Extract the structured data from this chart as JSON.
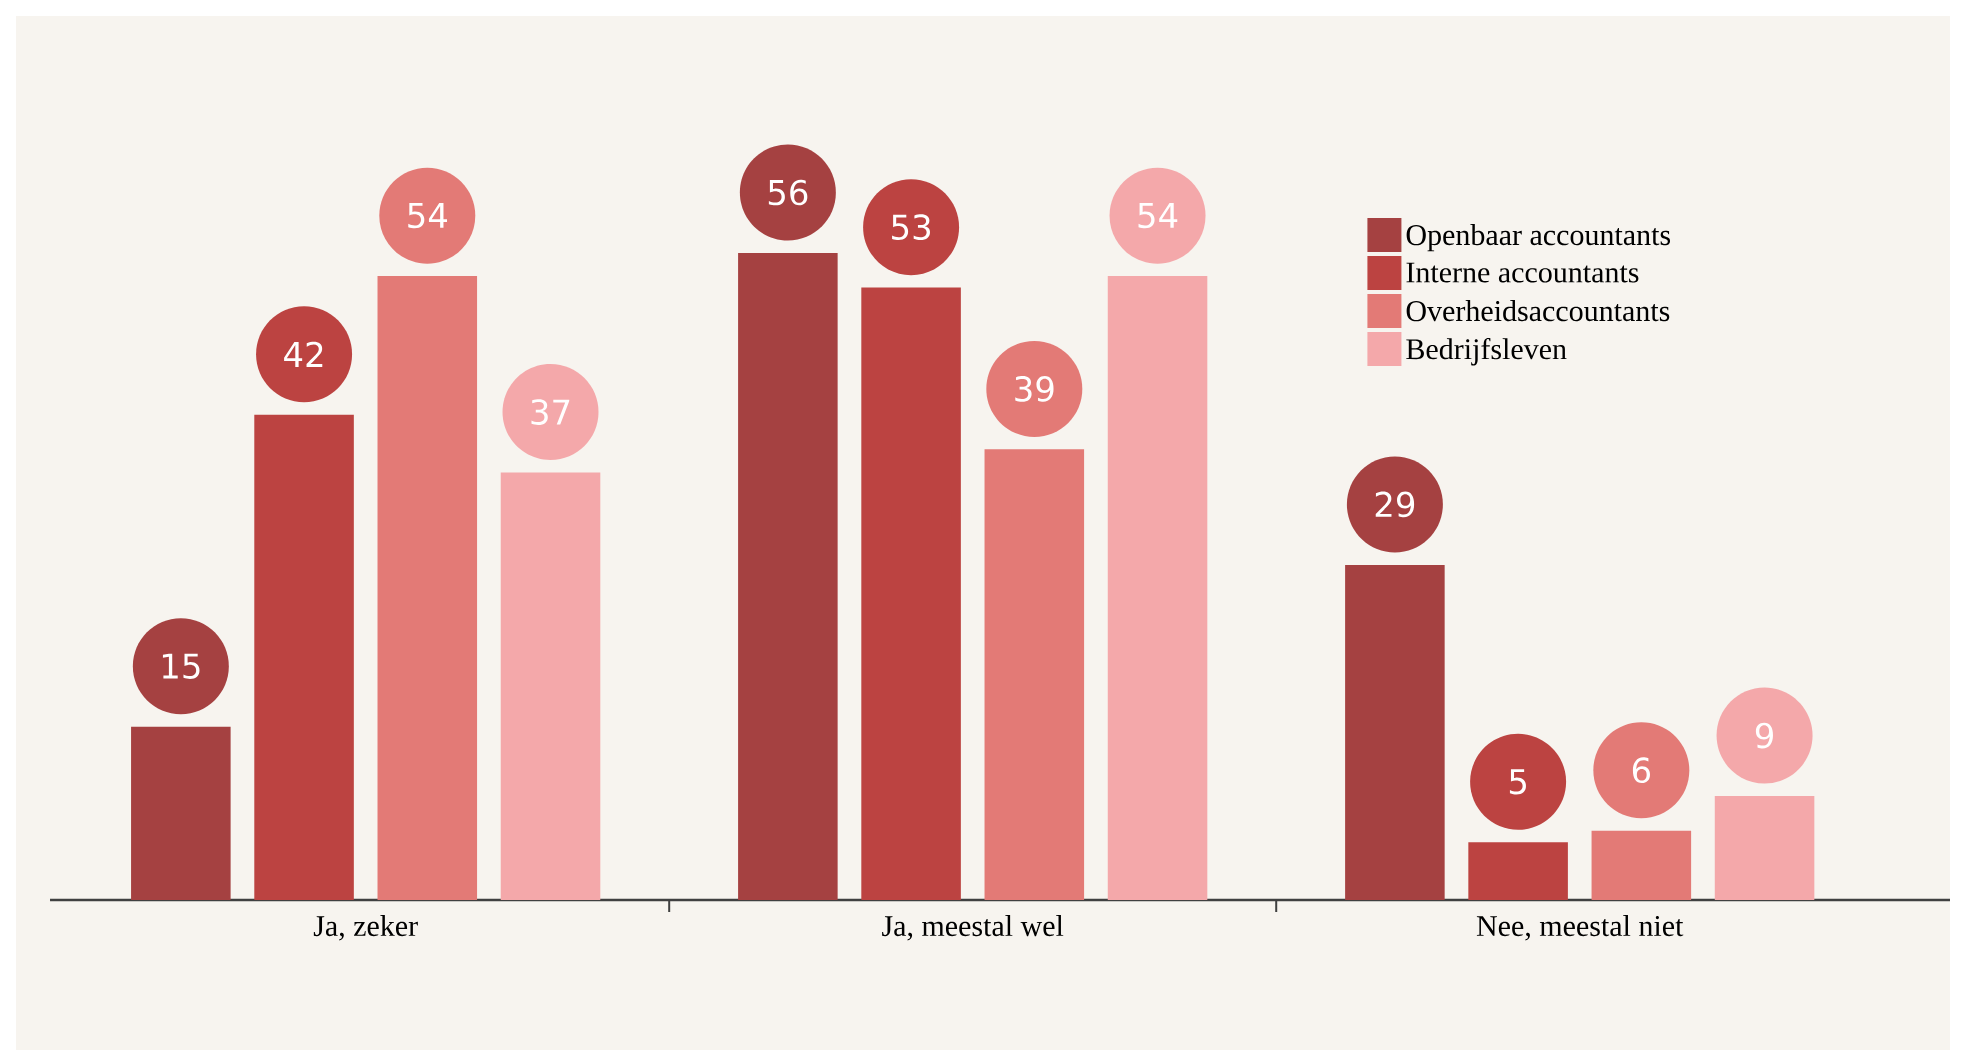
{
  "chart_data": {
    "type": "bar",
    "categories": [
      "Ja, zeker",
      "Ja, meestal wel",
      "Nee, meestal niet"
    ],
    "series": [
      {
        "name": "Openbaar accountants",
        "color": "#a54141",
        "values": [
          15,
          56,
          29
        ]
      },
      {
        "name": "Interne accountants",
        "color": "#bc4341",
        "values": [
          42,
          53,
          5
        ]
      },
      {
        "name": "Overheidsaccountants",
        "color": "#e37a76",
        "values": [
          54,
          39,
          6
        ]
      },
      {
        "name": "Bedrijfsleven",
        "color": "#f4a8aa",
        "values": [
          37,
          54,
          9
        ]
      }
    ],
    "data_labels": true,
    "legend": "top right"
  }
}
